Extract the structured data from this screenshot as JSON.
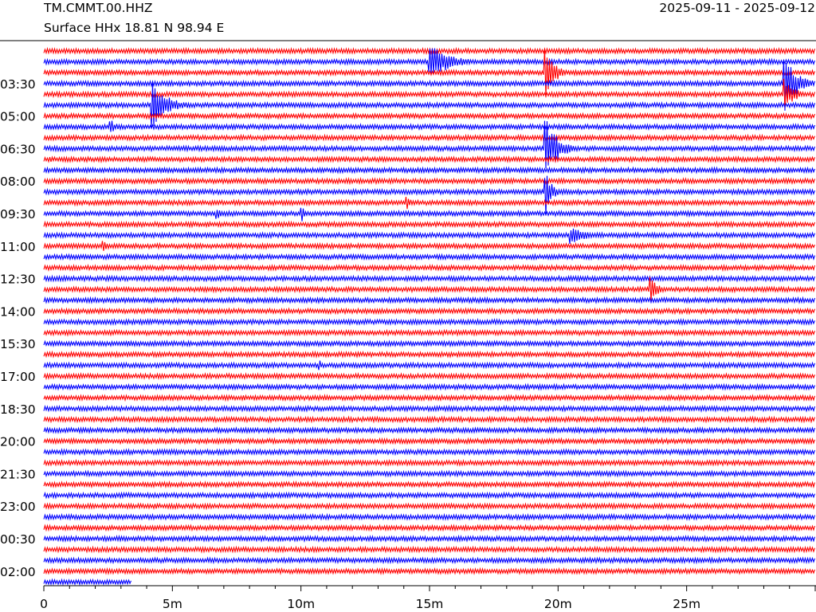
{
  "header": {
    "station": "TM.CMMT.00.HHZ",
    "location": "Surface HHx  18.81 N 98.94 E",
    "date_range": "2025-09-11 - 2025-09-12"
  },
  "colors": {
    "odd_trace": "#ff0000",
    "even_trace": "#0000ff",
    "axis": "#000000"
  },
  "chart_data": {
    "type": "line",
    "description_kind": "helicorder",
    "x_unit": "minutes",
    "xlim": [
      0,
      30
    ],
    "row_minutes": 30,
    "row_count": 50,
    "last_row_end_minute": 3.4,
    "x_ticks": [
      {
        "value": 0,
        "label": "0"
      },
      {
        "value": 5,
        "label": "5m"
      },
      {
        "value": 10,
        "label": "10m"
      },
      {
        "value": 15,
        "label": "15m"
      },
      {
        "value": 20,
        "label": "20m"
      },
      {
        "value": 25,
        "label": "25m"
      }
    ],
    "y_ticks": [
      {
        "row": 3,
        "label": "03:30"
      },
      {
        "row": 6,
        "label": "05:00"
      },
      {
        "row": 9,
        "label": "06:30"
      },
      {
        "row": 12,
        "label": "08:00"
      },
      {
        "row": 15,
        "label": "09:30"
      },
      {
        "row": 18,
        "label": "11:00"
      },
      {
        "row": 21,
        "label": "12:30"
      },
      {
        "row": 24,
        "label": "14:00"
      },
      {
        "row": 27,
        "label": "15:30"
      },
      {
        "row": 30,
        "label": "17:00"
      },
      {
        "row": 33,
        "label": "18:30"
      },
      {
        "row": 36,
        "label": "20:00"
      },
      {
        "row": 39,
        "label": "21:30"
      },
      {
        "row": 42,
        "label": "23:00"
      },
      {
        "row": 45,
        "label": "00:30"
      },
      {
        "row": 48,
        "label": "02:00"
      }
    ],
    "events": [
      {
        "row": 1,
        "minute": 15.0,
        "amp": 24,
        "dur": 2.5
      },
      {
        "row": 2,
        "minute": 19.5,
        "amp": 40,
        "dur": 1.0
      },
      {
        "row": 3,
        "minute": 28.8,
        "amp": 40,
        "dur": 1.5
      },
      {
        "row": 4,
        "minute": 28.8,
        "amp": 22,
        "dur": 1.2
      },
      {
        "row": 5,
        "minute": 4.2,
        "amp": 30,
        "dur": 2.0
      },
      {
        "row": 7,
        "minute": 2.6,
        "amp": 8,
        "dur": 1.0
      },
      {
        "row": 9,
        "minute": 19.5,
        "amp": 40,
        "dur": 1.5
      },
      {
        "row": 13,
        "minute": 19.5,
        "amp": 30,
        "dur": 0.8
      },
      {
        "row": 14,
        "minute": 14.1,
        "amp": 8,
        "dur": 0.8
      },
      {
        "row": 15,
        "minute": 6.7,
        "amp": 8,
        "dur": 0.8
      },
      {
        "row": 15,
        "minute": 10.0,
        "amp": 10,
        "dur": 0.8
      },
      {
        "row": 17,
        "minute": 20.5,
        "amp": 12,
        "dur": 2.0
      },
      {
        "row": 18,
        "minute": 2.3,
        "amp": 8,
        "dur": 0.8
      },
      {
        "row": 22,
        "minute": 23.6,
        "amp": 16,
        "dur": 1.0
      },
      {
        "row": 29,
        "minute": 10.7,
        "amp": 6,
        "dur": 0.6
      }
    ]
  }
}
